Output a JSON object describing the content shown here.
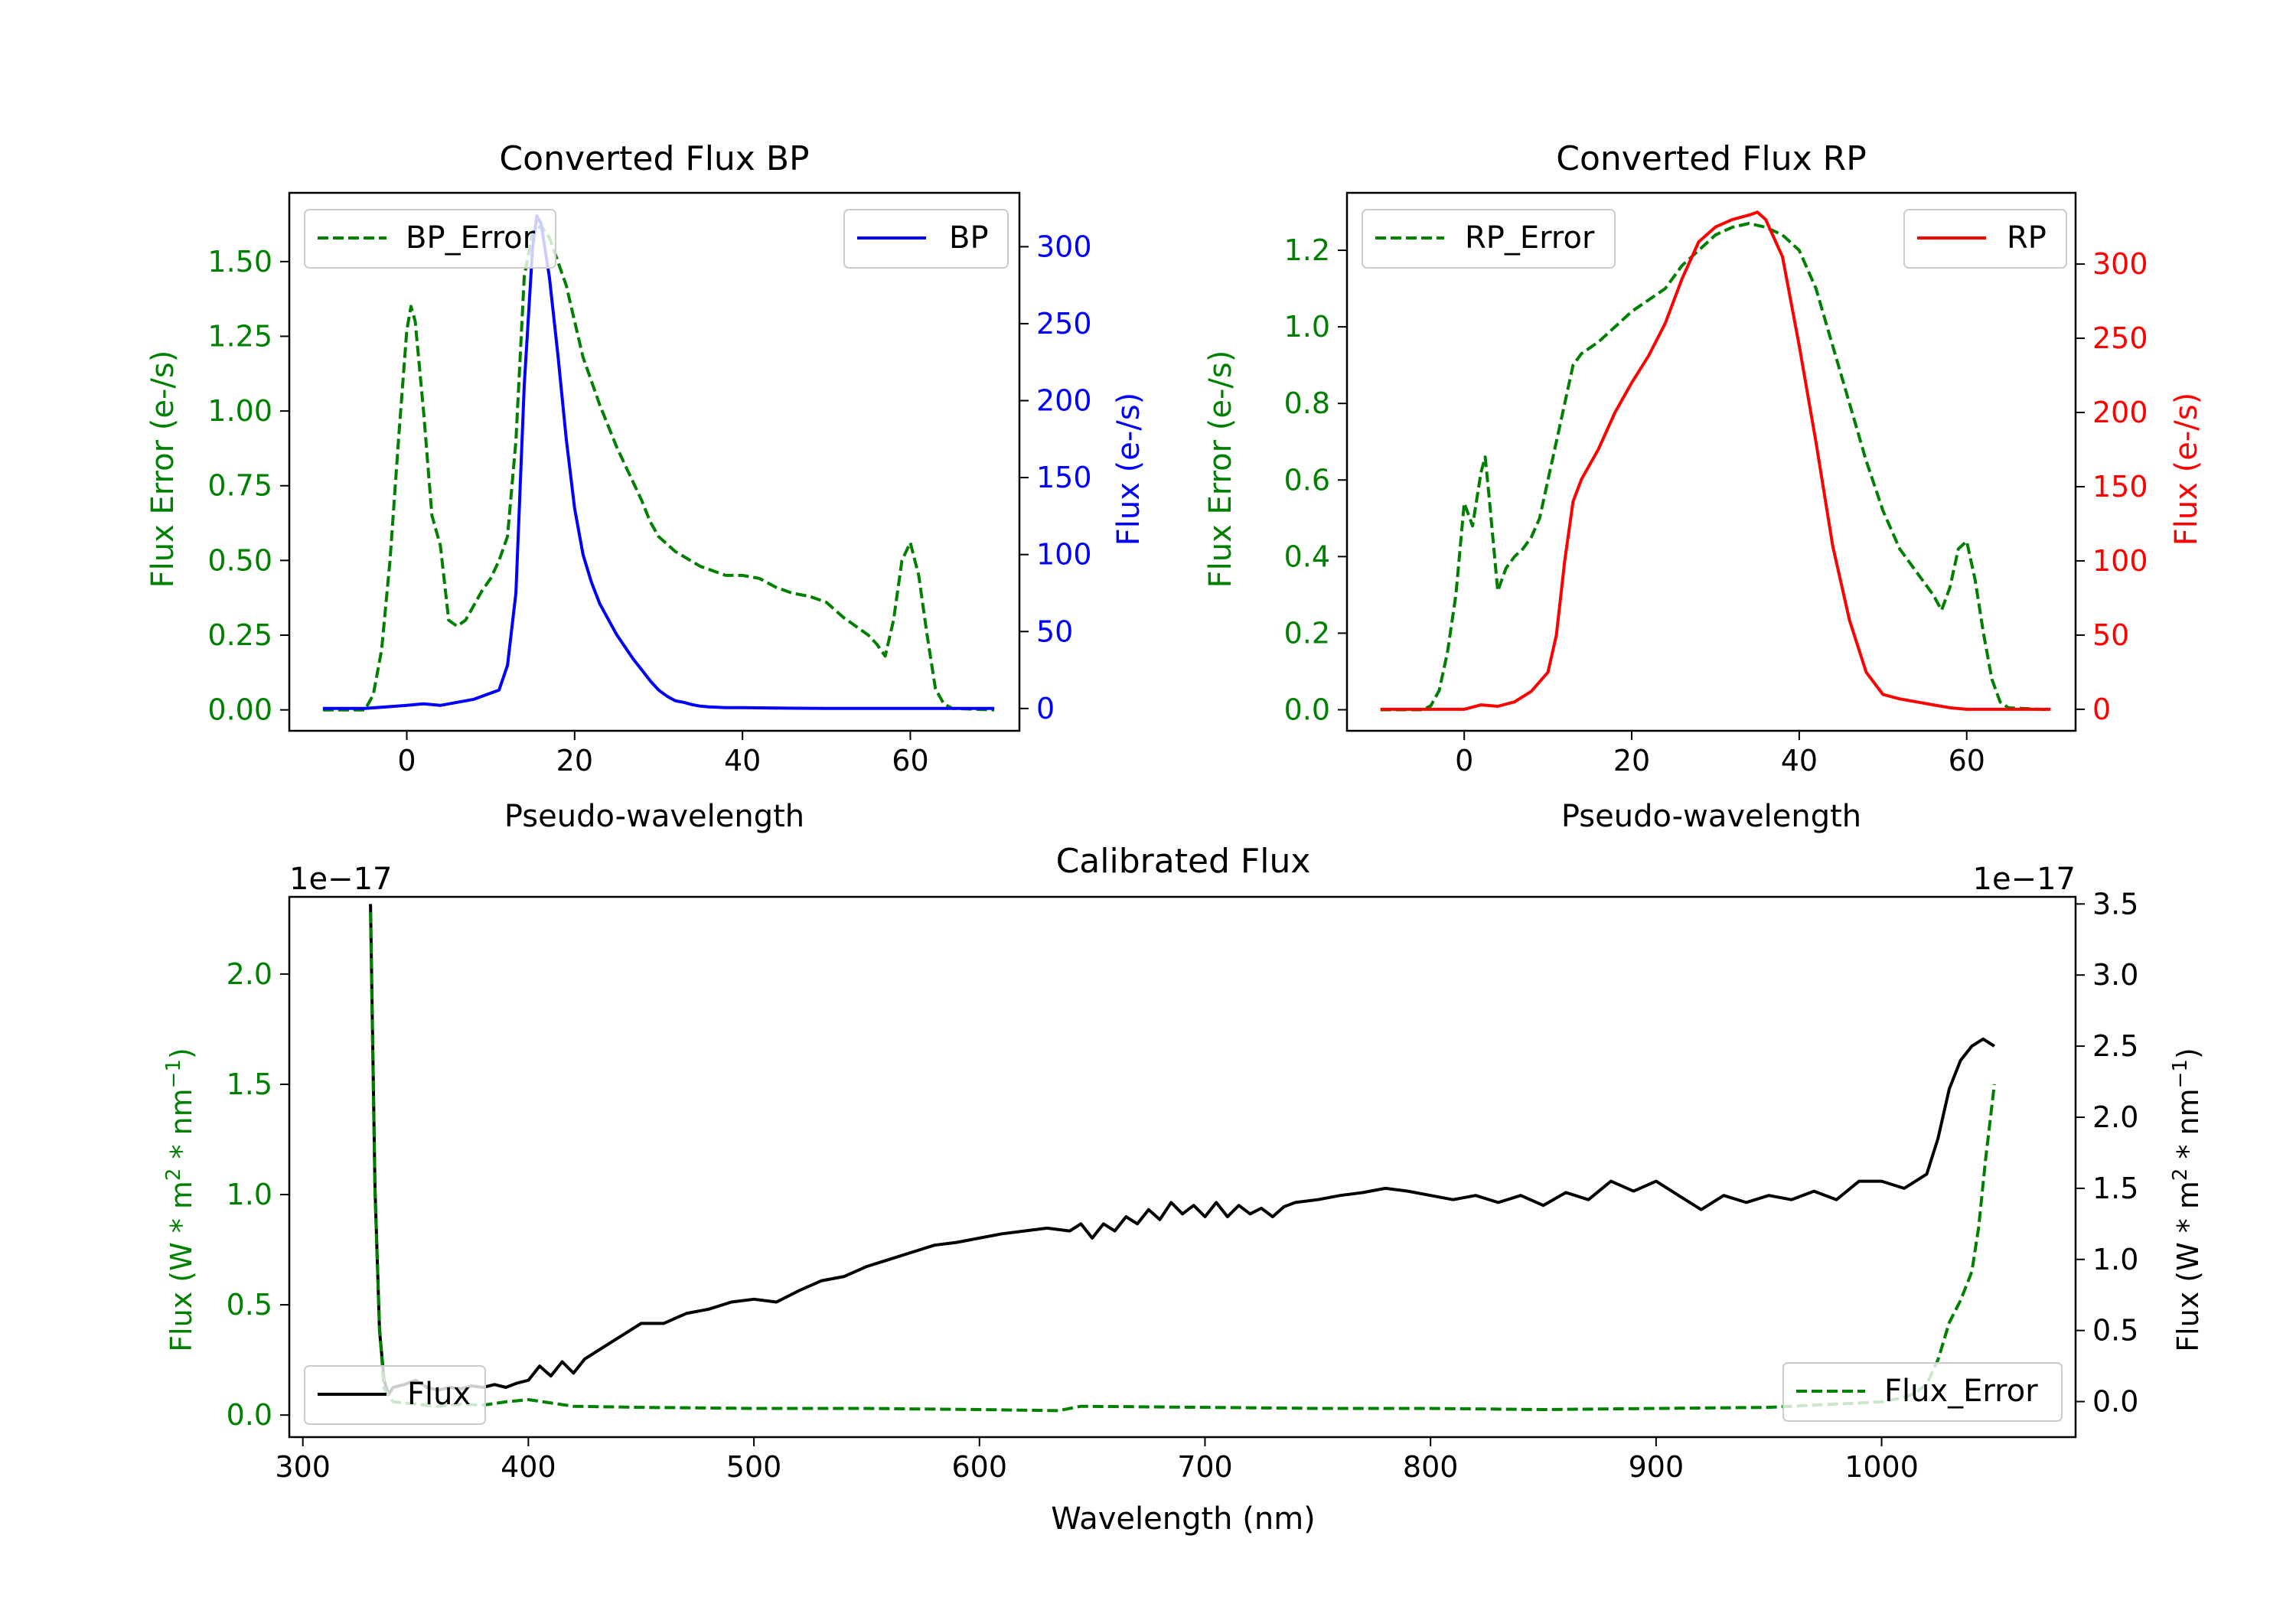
{
  "chart_data": [
    {
      "type": "line",
      "title": "Converted Flux BP",
      "xlabel": "Pseudo-wavelength",
      "ylabel_left": "Flux Error (e-/s)",
      "ylabel_right": "Flux (e-/s)",
      "xlim": [
        -14,
        73
      ],
      "ylim_left": [
        -0.07,
        1.73
      ],
      "ylim_right": [
        -14.5,
        335
      ],
      "xticks": [
        "0",
        "20",
        "40",
        "60"
      ],
      "yticks_left": [
        "0.00",
        "0.25",
        "0.50",
        "0.75",
        "1.00",
        "1.25",
        "1.50"
      ],
      "yticks_right": [
        "0",
        "50",
        "100",
        "150",
        "200",
        "250",
        "300"
      ],
      "colors": {
        "left": "#008000",
        "right": "#0000ff"
      },
      "legend_left": {
        "position": "top-left",
        "label": "BP_Error"
      },
      "legend_right": {
        "position": "top-right",
        "label": "BP"
      },
      "series": [
        {
          "name": "BP_Error",
          "axis": "left",
          "style": "dashed",
          "color": "#008000",
          "x": [
            -10,
            -5,
            -4,
            -3,
            -2,
            -1,
            0,
            0.5,
            1,
            2,
            3,
            4,
            5,
            6,
            7,
            8,
            9,
            10,
            11,
            12,
            13,
            14,
            15,
            16,
            17,
            18,
            19,
            20,
            21,
            22,
            23,
            24,
            25,
            26,
            27,
            28,
            29,
            30,
            32,
            35,
            38,
            40,
            42,
            44,
            46,
            48,
            50,
            52,
            54,
            55,
            56,
            57,
            58,
            59,
            60,
            61,
            62,
            63,
            64,
            65,
            70
          ],
          "y": [
            0,
            0,
            0.05,
            0.2,
            0.5,
            0.9,
            1.27,
            1.35,
            1.3,
            1.0,
            0.65,
            0.55,
            0.3,
            0.28,
            0.3,
            0.35,
            0.4,
            0.44,
            0.5,
            0.58,
            0.9,
            1.45,
            1.6,
            1.62,
            1.58,
            1.5,
            1.42,
            1.3,
            1.18,
            1.1,
            1.02,
            0.95,
            0.88,
            0.82,
            0.76,
            0.7,
            0.63,
            0.58,
            0.53,
            0.48,
            0.45,
            0.45,
            0.44,
            0.41,
            0.39,
            0.38,
            0.36,
            0.31,
            0.27,
            0.25,
            0.22,
            0.18,
            0.3,
            0.5,
            0.56,
            0.45,
            0.25,
            0.07,
            0.02,
            0.005,
            0
          ]
        },
        {
          "name": "BP",
          "axis": "right",
          "style": "solid",
          "color": "#0000ff",
          "x": [
            -10,
            -5,
            0,
            2,
            4,
            6,
            8,
            10,
            11,
            12,
            13,
            14,
            15,
            15.5,
            16,
            17,
            18,
            19,
            20,
            21,
            22,
            23,
            24,
            25,
            26,
            27,
            28,
            29,
            30,
            31,
            32,
            33,
            34,
            35,
            36,
            38,
            40,
            45,
            50,
            55,
            60,
            65,
            70
          ],
          "y": [
            0,
            0,
            2,
            3,
            2,
            4,
            6,
            10,
            12,
            28,
            75,
            210,
            300,
            320,
            315,
            280,
            230,
            175,
            130,
            100,
            82,
            68,
            58,
            48,
            40,
            32,
            25,
            18,
            12,
            8,
            5,
            4,
            2.5,
            1.5,
            1,
            0.5,
            0.5,
            0.2,
            0,
            0,
            0,
            0,
            0
          ]
        }
      ]
    },
    {
      "type": "line",
      "title": "Converted Flux RP",
      "xlabel": "Pseudo-wavelength",
      "ylabel_left": "Flux Error (e-/s)",
      "ylabel_right": "Flux (e-/s)",
      "xlim": [
        -14,
        73
      ],
      "ylim_left": [
        -0.055,
        1.35
      ],
      "ylim_right": [
        -14.5,
        348
      ],
      "xticks": [
        "0",
        "20",
        "40",
        "60"
      ],
      "yticks_left": [
        "0.0",
        "0.2",
        "0.4",
        "0.6",
        "0.8",
        "1.0",
        "1.2"
      ],
      "yticks_right": [
        "0",
        "50",
        "100",
        "150",
        "200",
        "250",
        "300"
      ],
      "colors": {
        "left": "#008000",
        "right": "#ff0000"
      },
      "legend_left": {
        "position": "top-left",
        "label": "RP_Error"
      },
      "legend_right": {
        "position": "top-right",
        "label": "RP"
      },
      "series": [
        {
          "name": "RP_Error",
          "axis": "left",
          "style": "dashed",
          "color": "#008000",
          "x": [
            -10,
            -5,
            -4,
            -3,
            -2,
            -1,
            0,
            1,
            2,
            2.5,
            3,
            4,
            5,
            6,
            7,
            8,
            9,
            10,
            11,
            12,
            13,
            14,
            16,
            18,
            20,
            22,
            24,
            26,
            28,
            30,
            32,
            34,
            36,
            38,
            40,
            42,
            44,
            46,
            48,
            50,
            52,
            54,
            56,
            57,
            58,
            59,
            60,
            61,
            62,
            63,
            64,
            65,
            70
          ],
          "y": [
            0,
            0,
            0.01,
            0.05,
            0.15,
            0.3,
            0.54,
            0.48,
            0.62,
            0.66,
            0.55,
            0.31,
            0.37,
            0.4,
            0.42,
            0.45,
            0.5,
            0.6,
            0.7,
            0.8,
            0.9,
            0.93,
            0.96,
            1.0,
            1.04,
            1.07,
            1.1,
            1.16,
            1.2,
            1.24,
            1.26,
            1.27,
            1.26,
            1.24,
            1.2,
            1.1,
            0.95,
            0.8,
            0.65,
            0.52,
            0.42,
            0.36,
            0.3,
            0.26,
            0.32,
            0.42,
            0.44,
            0.34,
            0.2,
            0.08,
            0.02,
            0.005,
            0
          ]
        },
        {
          "name": "RP",
          "axis": "right",
          "style": "solid",
          "color": "#ff0000",
          "x": [
            -10,
            -5,
            0,
            2,
            4,
            6,
            8,
            10,
            11,
            12,
            13,
            14,
            16,
            18,
            20,
            22,
            24,
            26,
            28,
            30,
            32,
            34,
            35,
            36,
            38,
            40,
            42,
            44,
            46,
            48,
            50,
            52,
            54,
            56,
            58,
            60,
            65,
            70
          ],
          "y": [
            0,
            0,
            0,
            3,
            2,
            5,
            12,
            25,
            50,
            100,
            140,
            155,
            175,
            200,
            220,
            238,
            260,
            290,
            315,
            325,
            330,
            333,
            335,
            330,
            305,
            245,
            180,
            110,
            60,
            25,
            10,
            7,
            5,
            3,
            1,
            0,
            0,
            0
          ]
        }
      ]
    },
    {
      "type": "line",
      "title": "Calibrated Flux",
      "xlabel": "Wavelength (nm)",
      "ylabel_left": "Flux (W * m$^2$ * nm$^{-1}$)",
      "ylabel_right": "Flux (W * m$^2$ * nm$^{-1}$)",
      "offset_text_left": "1e−17",
      "offset_text_right": "1e−17",
      "xlim": [
        294,
        1086
      ],
      "ylim_left": [
        -0.1,
        2.35
      ],
      "ylim_right": [
        -0.25,
        3.55
      ],
      "xticks": [
        "300",
        "400",
        "500",
        "600",
        "700",
        "800",
        "900",
        "1000"
      ],
      "yticks_left": [
        "0.0",
        "0.5",
        "1.0",
        "1.5",
        "2.0"
      ],
      "yticks_right": [
        "0.0",
        "0.5",
        "1.0",
        "1.5",
        "2.0",
        "2.5",
        "3.0",
        "3.5"
      ],
      "colors": {
        "left": "#008000",
        "right": "#000000"
      },
      "legend_left": {
        "position": "bottom-left",
        "label": "Flux"
      },
      "legend_right": {
        "position": "bottom-right",
        "label": "Flux_Error"
      },
      "series": [
        {
          "name": "Flux",
          "axis": "right",
          "style": "solid",
          "color": "#000000",
          "x": [
            330,
            332,
            334,
            336,
            338,
            340,
            345,
            350,
            355,
            360,
            365,
            370,
            375,
            380,
            385,
            390,
            395,
            400,
            405,
            410,
            415,
            420,
            425,
            430,
            440,
            450,
            460,
            470,
            480,
            490,
            500,
            510,
            520,
            530,
            540,
            550,
            560,
            570,
            580,
            590,
            600,
            610,
            620,
            630,
            640,
            645,
            650,
            655,
            660,
            665,
            670,
            675,
            680,
            685,
            690,
            695,
            700,
            705,
            710,
            715,
            720,
            725,
            730,
            735,
            740,
            750,
            760,
            770,
            780,
            790,
            800,
            810,
            820,
            830,
            840,
            850,
            860,
            870,
            880,
            890,
            900,
            910,
            920,
            930,
            940,
            950,
            960,
            970,
            980,
            990,
            1000,
            1010,
            1020,
            1025,
            1030,
            1035,
            1040,
            1045,
            1050
          ],
          "y": [
            3.5,
            1.5,
            0.5,
            0.15,
            0.05,
            0.1,
            0.12,
            0.15,
            0.1,
            0.08,
            0.1,
            0.09,
            0.11,
            0.1,
            0.12,
            0.1,
            0.13,
            0.15,
            0.25,
            0.18,
            0.28,
            0.2,
            0.3,
            0.35,
            0.45,
            0.55,
            0.55,
            0.62,
            0.65,
            0.7,
            0.72,
            0.7,
            0.78,
            0.85,
            0.88,
            0.95,
            1.0,
            1.05,
            1.1,
            1.12,
            1.15,
            1.18,
            1.2,
            1.22,
            1.2,
            1.25,
            1.15,
            1.25,
            1.2,
            1.3,
            1.25,
            1.35,
            1.28,
            1.4,
            1.32,
            1.38,
            1.3,
            1.4,
            1.3,
            1.38,
            1.32,
            1.36,
            1.3,
            1.37,
            1.4,
            1.42,
            1.45,
            1.47,
            1.5,
            1.48,
            1.45,
            1.42,
            1.45,
            1.4,
            1.45,
            1.38,
            1.47,
            1.42,
            1.55,
            1.48,
            1.55,
            1.45,
            1.35,
            1.45,
            1.4,
            1.45,
            1.42,
            1.48,
            1.42,
            1.55,
            1.55,
            1.5,
            1.6,
            1.85,
            2.2,
            2.4,
            2.5,
            2.55,
            2.5
          ]
        },
        {
          "name": "Flux_Error",
          "axis": "left",
          "style": "dashed",
          "color": "#008000",
          "x": [
            330,
            332,
            334,
            336,
            340,
            350,
            360,
            370,
            380,
            390,
            400,
            420,
            450,
            500,
            550,
            600,
            635,
            645,
            700,
            750,
            800,
            850,
            900,
            950,
            1000,
            1010,
            1015,
            1020,
            1025,
            1030,
            1035,
            1040,
            1043,
            1046,
            1050
          ],
          "y": [
            2.28,
            1.0,
            0.4,
            0.12,
            0.06,
            0.05,
            0.04,
            0.05,
            0.045,
            0.06,
            0.07,
            0.04,
            0.035,
            0.03,
            0.03,
            0.025,
            0.02,
            0.04,
            0.035,
            0.03,
            0.03,
            0.025,
            0.03,
            0.035,
            0.06,
            0.08,
            0.1,
            0.14,
            0.25,
            0.42,
            0.52,
            0.65,
            0.85,
            1.15,
            1.5
          ]
        }
      ]
    }
  ]
}
